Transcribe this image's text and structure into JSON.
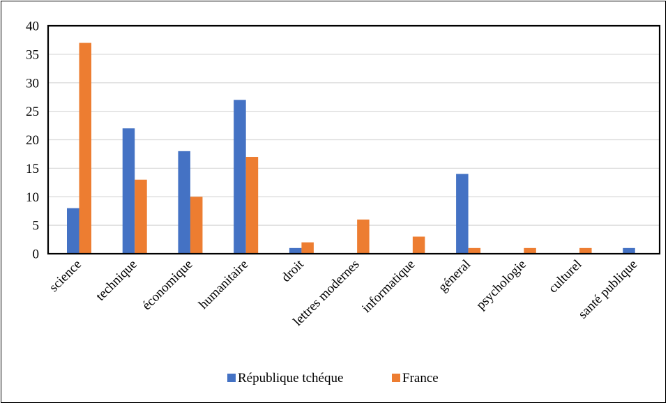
{
  "chart_data": {
    "type": "bar",
    "categories": [
      "science",
      "technique",
      "économique",
      "humanitaire",
      "droit",
      "lettres modernes",
      "informatique",
      "géneral",
      "psychologie",
      "culturel",
      "santé publique"
    ],
    "series": [
      {
        "name": "République tchéque",
        "values": [
          8,
          22,
          18,
          27,
          1,
          0,
          0,
          14,
          0,
          0,
          1
        ],
        "color": "#4472C4"
      },
      {
        "name": "France",
        "values": [
          37,
          13,
          10,
          17,
          2,
          6,
          3,
          1,
          1,
          1,
          0
        ],
        "color": "#ED7D31"
      }
    ],
    "y_ticks": [
      "0",
      "5",
      "10",
      "15",
      "20",
      "25",
      "30",
      "35",
      "40"
    ],
    "ylim": [
      0,
      40
    ],
    "grid": true,
    "legend": "bottom",
    "title": "",
    "xlabel": "",
    "ylabel": ""
  }
}
